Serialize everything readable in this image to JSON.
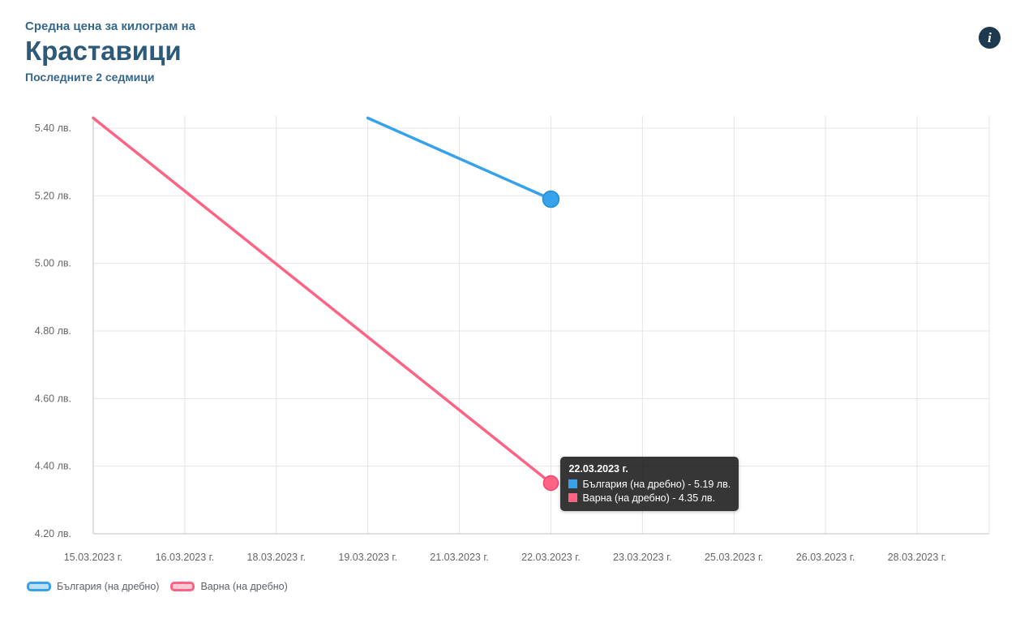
{
  "header": {
    "eyebrow": "Средна цена за килограм на",
    "title": "Краставици",
    "subtitle": "Последните 2 седмици"
  },
  "info_icon": {
    "glyph": "i"
  },
  "colors": {
    "accent_blue": "#36a2eb",
    "accent_pink": "#ff6384",
    "heading": "#35688c",
    "tick": "#666666",
    "grid": "#e5e5e5",
    "axis": "#c2c2c2",
    "tooltip_bg": "rgba(15,15,15,0.84)",
    "info_bg": "#1c3950"
  },
  "chart_data": {
    "type": "line",
    "title": "Средна цена за килограм на Краставици",
    "subtitle": "Последните 2 седмици",
    "grid": true,
    "legend_position": "bottom-left",
    "currency": "лв.",
    "ylim": [
      4.2,
      5.44
    ],
    "y_ticks": [
      5.4,
      5.2,
      5.0,
      4.8,
      4.6,
      4.4,
      4.2
    ],
    "y_tick_labels": [
      "5.40 лв.",
      "5.20 лв.",
      "5.00 лв.",
      "4.80 лв.",
      "4.60 лв.",
      "4.40 лв.",
      "4.20 лв."
    ],
    "x_tick_labels": [
      "15.03.2023 г.",
      "16.03.2023 г.",
      "18.03.2023 г.",
      "19.03.2023 г.",
      "21.03.2023 г.",
      "22.03.2023 г.",
      "23.03.2023 г.",
      "25.03.2023 г.",
      "26.03.2023 г.",
      "28.03.2023 г."
    ],
    "series": [
      {
        "id": "bulgaria",
        "name": "България (на дребно)",
        "color": "#36a2eb",
        "point_border": "#1e8fd8",
        "point_radius": 10,
        "points": [
          {
            "date": "19.03.2023 г.",
            "value": 5.43
          },
          {
            "date": "22.03.2023 г.",
            "value": 5.19
          }
        ]
      },
      {
        "id": "varna",
        "name": "Варна (на дребно)",
        "color": "#ff6384",
        "point_border": "#ee4770",
        "point_radius": 9,
        "points": [
          {
            "date": "15.03.2023 г.",
            "value": 5.43
          },
          {
            "date": "22.03.2023 г.",
            "value": 4.35
          }
        ]
      }
    ]
  },
  "tooltip": {
    "title": "22.03.2023 г.",
    "items": [
      {
        "color": "#36a2eb",
        "text": "България (на дребно) - 5.19 лв."
      },
      {
        "color": "#ff6384",
        "text": "Варна (на дребно) - 4.35 лв."
      }
    ]
  },
  "legend": {
    "items": [
      {
        "label": "България (на дребно)",
        "color": "#36a2eb"
      },
      {
        "label": "Варна (на дребно)",
        "color": "#ff6384"
      }
    ]
  }
}
